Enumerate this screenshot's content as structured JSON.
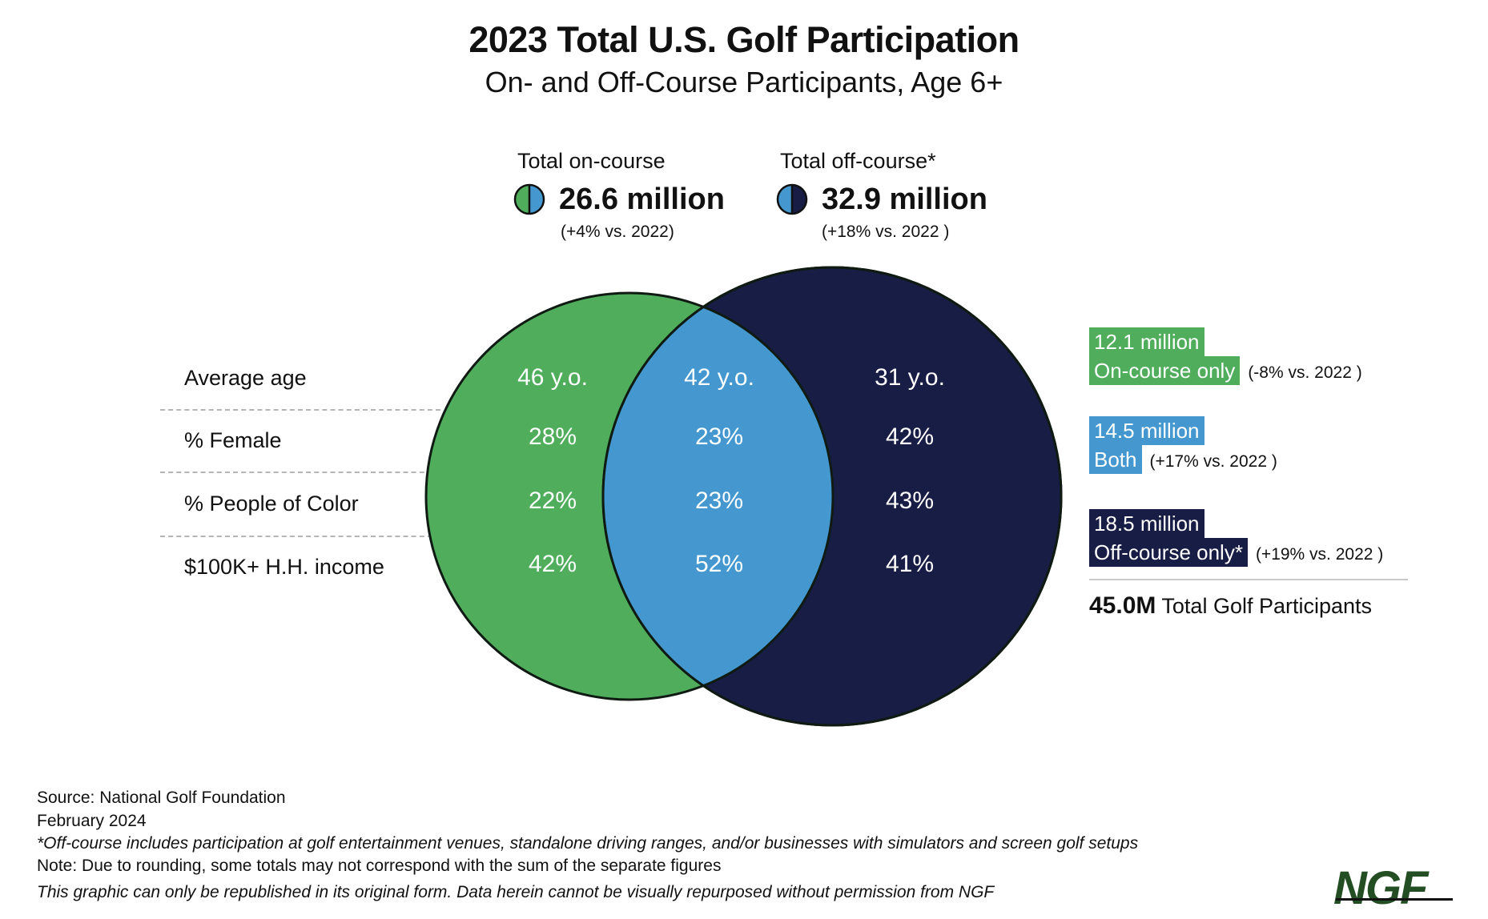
{
  "header": {
    "title": "2023 Total U.S. Golf Participation",
    "subtitle": "On- and Off-Course Participants, Age 6+"
  },
  "totals": {
    "on_course": {
      "label": "Total on-course",
      "value": "26.6 million",
      "change": "(+4% vs. 2022)",
      "icon": "half-green-half-blue-circle-icon"
    },
    "off_course": {
      "label": "Total off-course*",
      "value": "32.9 million",
      "change": "(+18% vs. 2022 )",
      "icon": "half-blue-half-navy-circle-icon"
    }
  },
  "colors": {
    "on_course_only": "#50ad5c",
    "both": "#4497cf",
    "off_course_only": "#181d45",
    "outline": "#0f1a12",
    "logo": "#234d22"
  },
  "metrics": {
    "labels": [
      "Average age",
      "% Female",
      "% People of Color",
      "$100K+ H.H. income"
    ]
  },
  "chart_data": {
    "type": "venn",
    "title": "2023 Total U.S. Golf Participation",
    "subtitle": "On- and Off-Course Participants, Age 6+",
    "sets": [
      {
        "name": "On-course",
        "total_millions": 26.6,
        "change_vs_2022": "+4%"
      },
      {
        "name": "Off-course",
        "total_millions": 32.9,
        "change_vs_2022": "+18%"
      }
    ],
    "regions": [
      {
        "key": "on_only",
        "label": "On-course only",
        "value_millions": 12.1,
        "value_text": "12.1 million",
        "change": "(-8% vs. 2022 )",
        "metrics": [
          "46 y.o.",
          "28%",
          "22%",
          "42%"
        ]
      },
      {
        "key": "both",
        "label": "Both",
        "value_millions": 14.5,
        "value_text": "14.5 million",
        "change": "(+17% vs. 2022 )",
        "metrics": [
          "42 y.o.",
          "23%",
          "23%",
          "52%"
        ]
      },
      {
        "key": "off_only",
        "label": "Off-course only*",
        "value_millions": 18.5,
        "value_text": "18.5 million",
        "change": "(+19% vs. 2022 )",
        "metrics": [
          "31 y.o.",
          "42%",
          "43%",
          "41%"
        ]
      }
    ],
    "metric_labels": [
      "Average age",
      "% Female",
      "% People of Color",
      "$100K+ H.H. income"
    ],
    "total": {
      "value": "45.0M",
      "label": "Total Golf Participants",
      "value_millions": 45.0
    }
  },
  "footer": {
    "source_label": "Source:",
    "source": "National Golf Foundation",
    "date": "February 2024",
    "footnote": "*Off-course includes participation at golf entertainment venues, standalone driving ranges, and/or businesses with simulators and screen golf setups",
    "note": "Note: Due to rounding, some totals may not correspond with the sum of the separate figures",
    "disclaimer": "This graphic can only be republished in its original form. Data herein cannot be visually repurposed without permission from NGF",
    "logo": "NGF"
  }
}
